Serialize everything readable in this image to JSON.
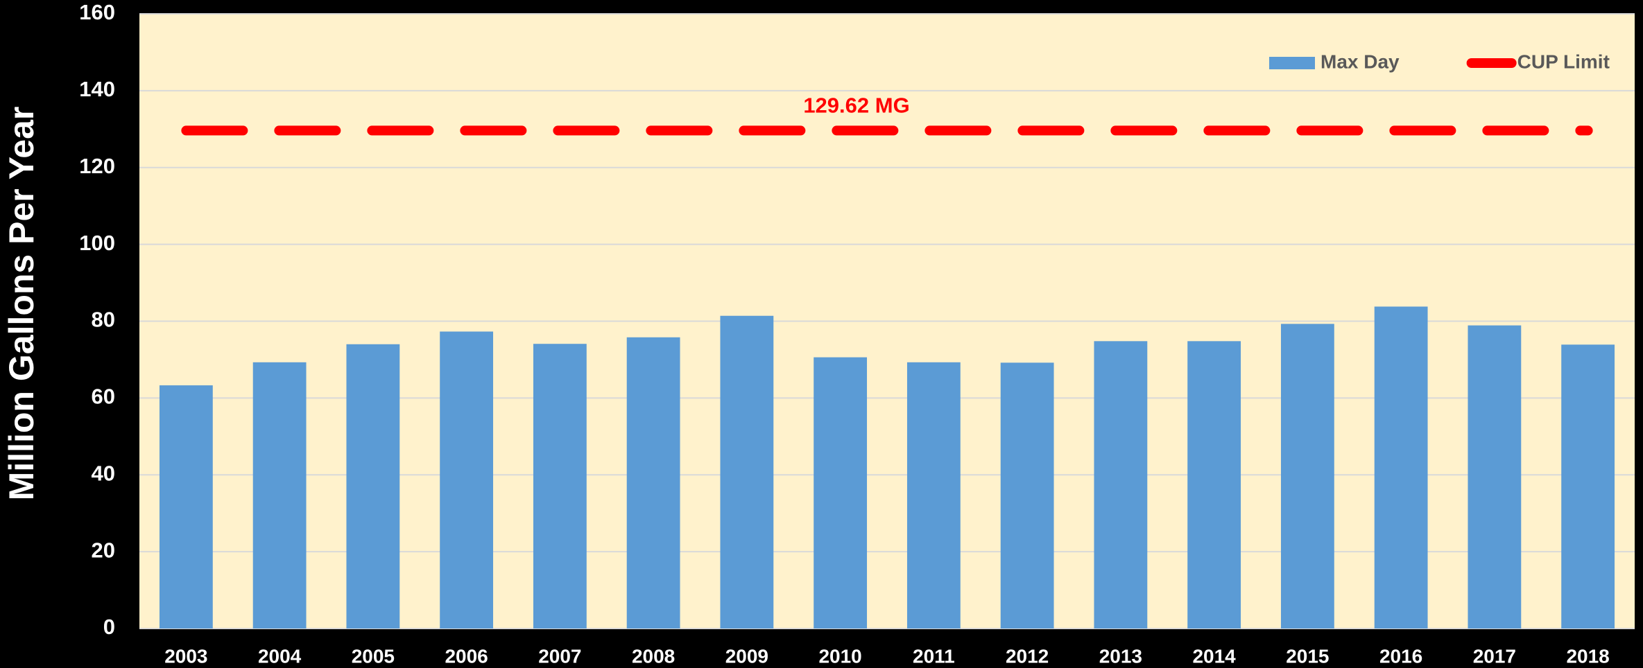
{
  "chart_data": {
    "type": "bar",
    "y_label": "Million Gallons Per Year",
    "categories": [
      "2003",
      "2004",
      "2005",
      "2006",
      "2007",
      "2008",
      "2009",
      "2010",
      "2011",
      "2012",
      "2013",
      "2014",
      "2015",
      "2016",
      "2017",
      "2018"
    ],
    "series": [
      {
        "name": "Max Day",
        "type": "bar",
        "color": "#5b9bd5",
        "values": [
          63.3,
          69.3,
          74.0,
          77.3,
          74.1,
          75.8,
          81.4,
          70.6,
          69.3,
          69.2,
          74.8,
          74.8,
          79.3,
          83.8,
          78.9,
          73.9
        ]
      },
      {
        "name": "CUP Limit",
        "type": "line",
        "color": "#ff0000",
        "values": [
          129.62,
          129.62,
          129.62,
          129.62,
          129.62,
          129.62,
          129.62,
          129.62,
          129.62,
          129.62,
          129.62,
          129.62,
          129.62,
          129.62,
          129.62,
          129.62
        ]
      }
    ],
    "annotation": "129.62 MG",
    "ylim": [
      0,
      160
    ],
    "yticks": [
      0,
      20,
      40,
      60,
      80,
      100,
      120,
      140,
      160
    ],
    "grid": true,
    "legend": "top-right"
  }
}
